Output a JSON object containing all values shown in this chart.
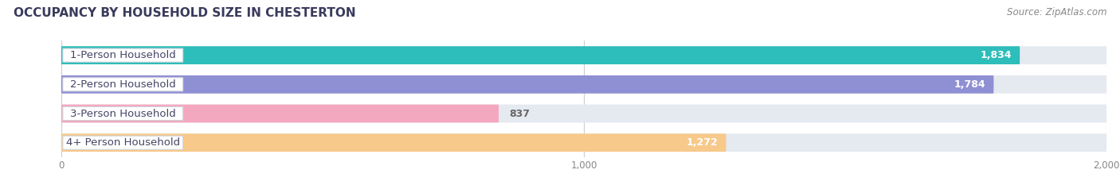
{
  "title": "OCCUPANCY BY HOUSEHOLD SIZE IN CHESTERTON",
  "source": "Source: ZipAtlas.com",
  "categories": [
    "1-Person Household",
    "2-Person Household",
    "3-Person Household",
    "4+ Person Household"
  ],
  "values": [
    1834,
    1784,
    837,
    1272
  ],
  "bar_colors": [
    "#2dbdba",
    "#8f8fd4",
    "#f4a8bf",
    "#f7c98a"
  ],
  "bar_bg_color": "#e5e9f0",
  "xlim_min": -100,
  "xlim_max": 2000,
  "xticks": [
    0,
    1000,
    2000
  ],
  "label_fontsize": 9.5,
  "value_fontsize": 9,
  "title_fontsize": 11,
  "source_fontsize": 8.5,
  "title_color": "#3a3a5c",
  "label_color": "#444466",
  "value_color_inside": "#ffffff",
  "value_color_outside": "#666666",
  "bar_height": 0.62,
  "bg_color": "#ffffff"
}
